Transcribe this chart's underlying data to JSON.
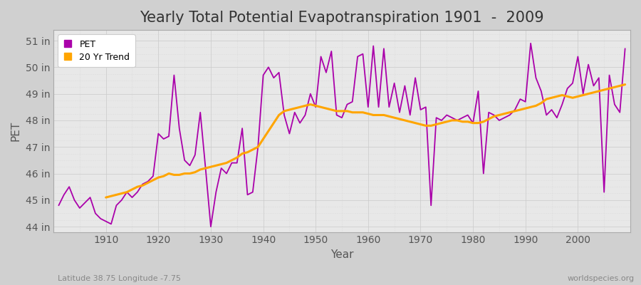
{
  "title": "Yearly Total Potential Evapotranspiration 1901  -  2009",
  "xlabel": "Year",
  "ylabel": "PET",
  "subtitle": "Latitude 38.75 Longitude -7.75",
  "watermark": "worldspecies.org",
  "pet_color": "#AA00AA",
  "trend_color": "#FFA500",
  "years": [
    1901,
    1902,
    1903,
    1904,
    1905,
    1906,
    1907,
    1908,
    1909,
    1910,
    1911,
    1912,
    1913,
    1914,
    1915,
    1916,
    1917,
    1918,
    1919,
    1920,
    1921,
    1922,
    1923,
    1924,
    1925,
    1926,
    1927,
    1928,
    1929,
    1930,
    1931,
    1932,
    1933,
    1934,
    1935,
    1936,
    1937,
    1938,
    1939,
    1940,
    1941,
    1942,
    1943,
    1944,
    1945,
    1946,
    1947,
    1948,
    1949,
    1950,
    1951,
    1952,
    1953,
    1954,
    1955,
    1956,
    1957,
    1958,
    1959,
    1960,
    1961,
    1962,
    1963,
    1964,
    1965,
    1966,
    1967,
    1968,
    1969,
    1970,
    1971,
    1972,
    1973,
    1974,
    1975,
    1976,
    1977,
    1978,
    1979,
    1980,
    1981,
    1982,
    1983,
    1984,
    1985,
    1986,
    1987,
    1988,
    1989,
    1990,
    1991,
    1992,
    1993,
    1994,
    1995,
    1996,
    1997,
    1998,
    1999,
    2000,
    2001,
    2002,
    2003,
    2004,
    2005,
    2006,
    2007,
    2008,
    2009
  ],
  "pet_values": [
    44.8,
    45.2,
    45.5,
    45.0,
    44.7,
    44.9,
    45.1,
    44.5,
    44.3,
    44.2,
    44.1,
    44.8,
    45.0,
    45.3,
    45.1,
    45.3,
    45.6,
    45.7,
    45.9,
    47.5,
    47.3,
    47.4,
    49.7,
    47.7,
    46.5,
    46.3,
    46.7,
    48.3,
    46.2,
    44.0,
    45.3,
    46.2,
    46.0,
    46.4,
    46.4,
    47.7,
    45.2,
    45.3,
    47.0,
    49.7,
    50.0,
    49.6,
    49.8,
    48.2,
    47.5,
    48.3,
    47.9,
    48.2,
    49.0,
    48.5,
    50.4,
    49.8,
    50.6,
    48.2,
    48.1,
    48.6,
    48.7,
    50.4,
    50.5,
    48.5,
    50.8,
    48.5,
    50.7,
    48.5,
    49.4,
    48.3,
    49.3,
    48.2,
    49.6,
    48.4,
    48.5,
    44.8,
    48.1,
    48.0,
    48.2,
    48.1,
    48.0,
    48.1,
    48.2,
    47.9,
    49.1,
    46.0,
    48.3,
    48.2,
    48.0,
    48.1,
    48.2,
    48.4,
    48.8,
    48.7,
    50.9,
    49.6,
    49.1,
    48.2,
    48.4,
    48.1,
    48.6,
    49.2,
    49.4,
    50.4,
    49.0,
    50.1,
    49.3,
    49.6,
    45.3,
    49.7,
    48.6,
    48.3,
    50.7
  ],
  "trend_start_year": 1910,
  "trend_values": [
    45.1,
    45.15,
    45.2,
    45.25,
    45.3,
    45.4,
    45.5,
    45.55,
    45.65,
    45.75,
    45.85,
    45.9,
    46.0,
    45.95,
    45.95,
    46.0,
    46.0,
    46.05,
    46.15,
    46.2,
    46.25,
    46.3,
    46.35,
    46.4,
    46.5,
    46.6,
    46.75,
    46.8,
    46.9,
    47.0,
    47.3,
    47.6,
    47.9,
    48.2,
    48.35,
    48.4,
    48.45,
    48.5,
    48.55,
    48.6,
    48.55,
    48.5,
    48.45,
    48.4,
    48.35,
    48.35,
    48.35,
    48.3,
    48.3,
    48.3,
    48.25,
    48.2,
    48.2,
    48.2,
    48.15,
    48.1,
    48.05,
    48.0,
    47.95,
    47.9,
    47.85,
    47.8,
    47.8,
    47.85,
    47.9,
    47.95,
    48.0,
    48.0,
    47.95,
    47.95,
    47.9,
    47.9,
    47.95,
    48.05,
    48.15,
    48.2,
    48.25,
    48.3,
    48.35,
    48.4,
    48.45,
    48.5,
    48.55,
    48.65,
    48.8,
    48.85,
    48.9,
    48.95,
    48.9,
    48.85,
    48.9,
    48.95,
    49.0,
    49.05,
    49.1,
    49.15,
    49.2,
    49.25,
    49.3,
    49.35
  ],
  "ylim": [
    43.8,
    51.4
  ],
  "yticks": [
    44,
    45,
    46,
    47,
    48,
    49,
    50,
    51
  ],
  "ytick_labels": [
    "44 in",
    "45 in",
    "46 in",
    "47 in",
    "48 in",
    "49 in",
    "50 in",
    "51 in"
  ],
  "xlim": [
    1900,
    2010
  ],
  "xticks": [
    1910,
    1920,
    1930,
    1940,
    1950,
    1960,
    1970,
    1980,
    1990,
    2000
  ],
  "grid_color": "#cccccc",
  "title_fontsize": 15,
  "axis_label_fontsize": 11,
  "tick_fontsize": 10,
  "legend_fontsize": 9
}
